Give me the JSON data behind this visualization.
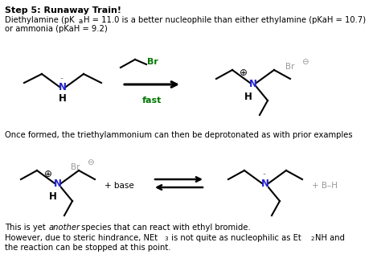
{
  "title_bold": "Step 5: Runaway Train!",
  "line2": "Diethylamine (pK",
  "line2b": "a",
  "line2c": "H = 11.0 is a better nucleophile than either ethylamine (pKaH = 10.7)",
  "line3": "or ammonia (pKaH = 9.2)",
  "once_text": "Once formed, the triethylammonium can then be deprotonated as with prior examples",
  "yet_text1": "This is yet ",
  "yet_text2": "another",
  "yet_text3": " species that can react with ethyl bromide.",
  "however1": "However, due to steric hindrance, NEt",
  "however2": "3",
  "however3": " is not quite as nucleophilic as Et",
  "however4": "2",
  "however5": "NH and",
  "however6": "the reaction can be stopped at this point.",
  "bg_color": "#ffffff",
  "text_color": "#000000",
  "blue_color": "#2222cc",
  "green_color": "#007700",
  "gray_color": "#999999",
  "figsize": [
    4.74,
    3.37
  ],
  "dpi": 100
}
